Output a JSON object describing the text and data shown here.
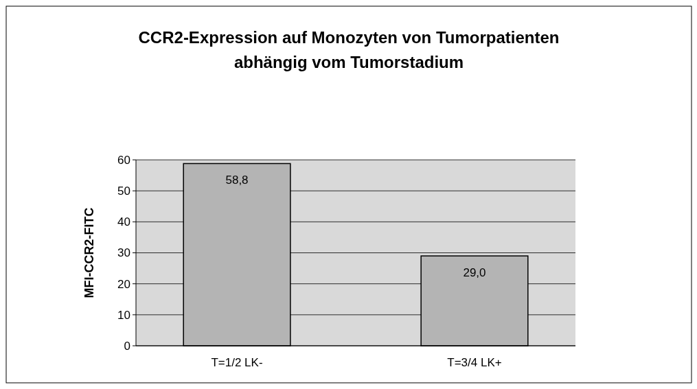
{
  "chart_data": {
    "type": "bar",
    "title": "CCR2-Expression auf Monozyten von Tumorpatienten abhängig vom Tumorstadium",
    "ylabel": "MFI-CCR2-FITC",
    "categories": [
      "T=1/2 LK-",
      "T=3/4 LK+"
    ],
    "values": [
      58.8,
      29.0
    ],
    "value_labels": [
      "58,8",
      "29,0"
    ],
    "color": "#b4b4b4",
    "ylim": [
      0,
      60
    ],
    "yticks": [
      0,
      10,
      20,
      30,
      40,
      50,
      60
    ],
    "grid": "y"
  }
}
